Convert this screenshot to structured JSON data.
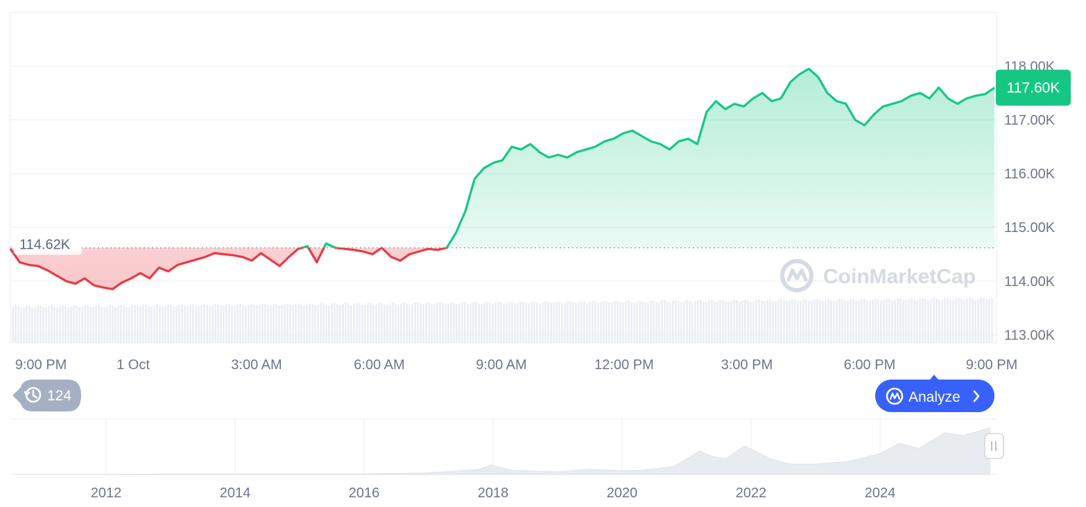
{
  "chart_data": {
    "type": "area",
    "y_ticks": [
      "113.00K",
      "114.00K",
      "115.00K",
      "116.00K",
      "117.00K",
      "118.00K"
    ],
    "y_tick_values": [
      113000,
      114000,
      115000,
      116000,
      117000,
      118000
    ],
    "ylim": [
      112850,
      119000
    ],
    "x_ticks": [
      "9:00 PM",
      "1 Oct",
      "3:00 AM",
      "6:00 AM",
      "9:00 AM",
      "12:00 PM",
      "3:00 PM",
      "6:00 PM",
      "9:00 PM"
    ],
    "x_tick_hours": [
      0,
      3,
      6,
      9,
      12,
      15,
      18,
      21,
      24
    ],
    "baseline_value": 114620,
    "baseline_label": "114.62K",
    "current_value": 117600,
    "current_label": "117.60K",
    "series": [
      {
        "points": [
          [
            0.0,
            114600
          ],
          [
            0.3,
            114350
          ],
          [
            0.6,
            114300
          ],
          [
            0.9,
            114280
          ],
          [
            1.2,
            114200
          ],
          [
            1.5,
            114100
          ],
          [
            1.8,
            114000
          ],
          [
            2.1,
            113950
          ],
          [
            2.4,
            114050
          ],
          [
            2.7,
            113920
          ],
          [
            3.0,
            113880
          ],
          [
            3.3,
            113850
          ],
          [
            3.6,
            113970
          ],
          [
            3.9,
            114050
          ],
          [
            4.2,
            114150
          ],
          [
            4.5,
            114050
          ],
          [
            4.8,
            114250
          ],
          [
            5.1,
            114180
          ],
          [
            5.4,
            114300
          ],
          [
            5.7,
            114350
          ],
          [
            6.0,
            114400
          ],
          [
            6.3,
            114450
          ],
          [
            6.6,
            114520
          ],
          [
            6.9,
            114500
          ],
          [
            7.2,
            114480
          ],
          [
            7.5,
            114450
          ],
          [
            7.8,
            114380
          ],
          [
            8.1,
            114520
          ],
          [
            8.4,
            114400
          ],
          [
            8.7,
            114280
          ],
          [
            9.0,
            114450
          ],
          [
            9.3,
            114600
          ],
          [
            9.6,
            114650
          ],
          [
            9.9,
            114350
          ],
          [
            10.2,
            114700
          ],
          [
            10.5,
            114620
          ],
          [
            10.8,
            114600
          ],
          [
            11.1,
            114580
          ],
          [
            11.4,
            114550
          ],
          [
            11.7,
            114500
          ],
          [
            12.0,
            114620
          ],
          [
            12.3,
            114450
          ],
          [
            12.6,
            114380
          ],
          [
            12.9,
            114500
          ],
          [
            13.2,
            114550
          ],
          [
            13.5,
            114600
          ],
          [
            13.8,
            114580
          ],
          [
            14.1,
            114620
          ],
          [
            14.4,
            114900
          ],
          [
            14.7,
            115300
          ],
          [
            15.0,
            115900
          ],
          [
            15.3,
            116100
          ],
          [
            15.6,
            116200
          ],
          [
            15.9,
            116250
          ],
          [
            16.2,
            116500
          ],
          [
            16.5,
            116450
          ],
          [
            16.8,
            116550
          ],
          [
            17.1,
            116400
          ],
          [
            17.4,
            116300
          ],
          [
            17.7,
            116350
          ],
          [
            18.0,
            116300
          ],
          [
            18.3,
            116400
          ],
          [
            18.6,
            116450
          ],
          [
            18.9,
            116500
          ],
          [
            19.2,
            116600
          ],
          [
            19.5,
            116650
          ],
          [
            19.8,
            116750
          ],
          [
            20.1,
            116800
          ],
          [
            20.4,
            116700
          ],
          [
            20.7,
            116600
          ],
          [
            21.0,
            116550
          ],
          [
            21.3,
            116450
          ],
          [
            21.6,
            116600
          ],
          [
            21.9,
            116650
          ],
          [
            22.2,
            116550
          ],
          [
            22.5,
            117150
          ],
          [
            22.8,
            117350
          ],
          [
            23.1,
            117200
          ],
          [
            23.4,
            117300
          ],
          [
            23.7,
            117250
          ],
          [
            24.0,
            117400
          ],
          [
            24.3,
            117500
          ],
          [
            24.6,
            117350
          ],
          [
            24.9,
            117400
          ],
          [
            25.2,
            117700
          ],
          [
            25.5,
            117850
          ],
          [
            25.8,
            117950
          ],
          [
            26.1,
            117800
          ],
          [
            26.4,
            117500
          ],
          [
            26.7,
            117350
          ],
          [
            27.0,
            117300
          ],
          [
            27.3,
            117000
          ],
          [
            27.6,
            116900
          ],
          [
            27.9,
            117100
          ],
          [
            28.2,
            117250
          ],
          [
            28.5,
            117300
          ],
          [
            28.8,
            117350
          ],
          [
            29.1,
            117450
          ],
          [
            29.4,
            117500
          ],
          [
            29.7,
            117400
          ],
          [
            30.0,
            117600
          ],
          [
            30.3,
            117400
          ],
          [
            30.6,
            117300
          ],
          [
            30.9,
            117400
          ],
          [
            31.2,
            117450
          ],
          [
            31.5,
            117480
          ],
          [
            31.8,
            117600
          ]
        ]
      }
    ],
    "overview": {
      "x_ticks": [
        "2012",
        "2014",
        "2016",
        "2018",
        "2020",
        "2022",
        "2024"
      ]
    },
    "legend_badge": "124",
    "analyze_label": "Analyze",
    "watermark": "CoinMarketCap",
    "colors": {
      "up": "#16c784",
      "down": "#ea3943",
      "grid": "#eff2f5",
      "axis_text": "#6e7585",
      "analyze_bg": "#3861fb",
      "badge_bg": "#a6b0c3"
    }
  }
}
